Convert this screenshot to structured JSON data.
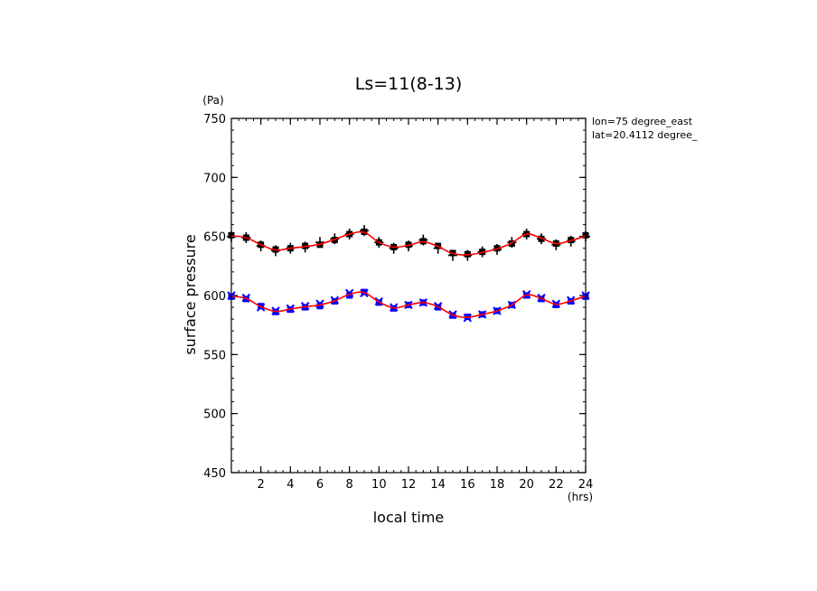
{
  "chart_data": {
    "type": "line",
    "title": "Ls=11(8-13)",
    "xlabel": "local time",
    "ylabel": "surface pressure",
    "xunit": "(hrs)",
    "yunit": "(Pa)",
    "xlim": [
      0,
      24
    ],
    "ylim": [
      450,
      750
    ],
    "xticks": [
      2,
      4,
      6,
      8,
      10,
      12,
      14,
      16,
      18,
      20,
      22,
      24
    ],
    "yticks": [
      450,
      500,
      550,
      600,
      650,
      700,
      750
    ],
    "x_minor_step": 0.5,
    "y_minor_step": 10,
    "annotations": [
      "lon=75 degree_east",
      "lat=20.4112 degree_"
    ],
    "grid": false,
    "legend": "none",
    "x": [
      0,
      1,
      2,
      3,
      4,
      5,
      6,
      7,
      8,
      9,
      10,
      11,
      12,
      13,
      14,
      15,
      16,
      17,
      18,
      19,
      20,
      21,
      22,
      23,
      24
    ],
    "series": [
      {
        "marker": "square",
        "color": "#000000",
        "values": [
          651,
          649,
          643,
          639,
          640,
          642,
          643,
          647,
          652,
          654,
          645,
          641,
          643,
          646,
          642,
          636,
          635,
          637,
          640,
          644,
          652,
          648,
          644,
          647,
          651
        ]
      },
      {
        "marker": "plus",
        "color": "#000000",
        "values": [
          650,
          649,
          642,
          638,
          640,
          641,
          645,
          648,
          652,
          655,
          645,
          640,
          642,
          647,
          640,
          634,
          634,
          637,
          639,
          645,
          652,
          648,
          643,
          646,
          650
        ]
      },
      {
        "marker": "square",
        "color": "#0000ff",
        "values": [
          599,
          597,
          591,
          586,
          588,
          590,
          591,
          595,
          600,
          603,
          594,
          589,
          592,
          594,
          590,
          583,
          582,
          584,
          587,
          592,
          600,
          597,
          592,
          595,
          599
        ]
      },
      {
        "marker": "cross",
        "color": "#0000ff",
        "values": [
          600,
          598,
          590,
          587,
          589,
          591,
          593,
          596,
          602,
          602,
          595,
          590,
          592,
          594,
          591,
          584,
          581,
          584,
          587,
          592,
          601,
          598,
          593,
          596,
          600
        ]
      },
      {
        "type": "smooth-line",
        "color": "#ff0000",
        "values": [
          650.5,
          649,
          643,
          638.5,
          640,
          641.5,
          643.5,
          647.5,
          652,
          653.5,
          645,
          641,
          642.5,
          645.5,
          641.5,
          635.5,
          634.5,
          636.5,
          639.5,
          644.5,
          652,
          648.5,
          644,
          646.5,
          650.5
        ]
      },
      {
        "type": "smooth-line",
        "color": "#ff0000",
        "values": [
          599.5,
          597.5,
          590.5,
          586.5,
          588.5,
          590.5,
          592,
          595.5,
          601,
          602.5,
          594.5,
          589.5,
          592,
          594,
          590.5,
          583.5,
          581.5,
          584,
          587,
          592,
          600.5,
          597.5,
          592.5,
          595.5,
          599.5
        ]
      }
    ]
  }
}
